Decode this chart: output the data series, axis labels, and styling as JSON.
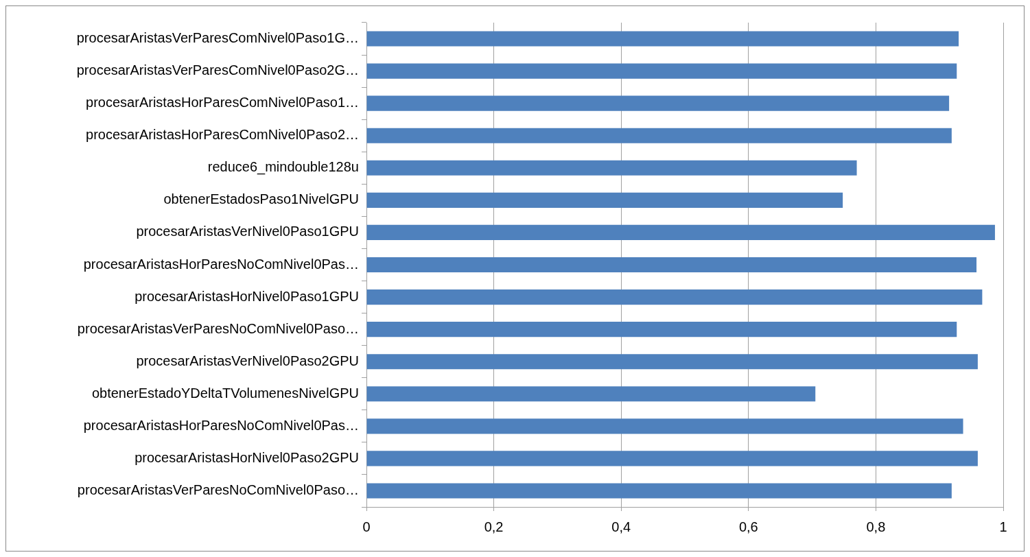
{
  "chart_data": {
    "type": "bar",
    "orientation": "horizontal",
    "categories": [
      "procesarAristasVerParesComNivel0Paso1G…",
      "procesarAristasVerParesComNivel0Paso2G…",
      "procesarAristasHorParesComNivel0Paso1…",
      "procesarAristasHorParesComNivel0Paso2…",
      "reduce6_mindouble128u",
      "obtenerEstadosPaso1NivelGPU",
      "procesarAristasVerNivel0Paso1GPU",
      "procesarAristasHorParesNoComNivel0Pas…",
      "procesarAristasHorNivel0Paso1GPU",
      "procesarAristasVerParesNoComNivel0Paso…",
      "procesarAristasVerNivel0Paso2GPU",
      "obtenerEstadoYDeltaTVolumenesNivelGPU",
      "procesarAristasHorParesNoComNivel0Pas…",
      "procesarAristasHorNivel0Paso2GPU",
      "procesarAristasVerParesNoComNivel0Paso…"
    ],
    "values": [
      0.93,
      0.927,
      0.915,
      0.919,
      0.77,
      0.748,
      0.987,
      0.958,
      0.967,
      0.927,
      0.96,
      0.705,
      0.937,
      0.96,
      0.919
    ],
    "color": "#4f81bd",
    "xlim": [
      0,
      1
    ],
    "xticks": [
      0,
      {
        "value": 0.2,
        "label": "0,2"
      },
      {
        "value": 0.4,
        "label": "0,4"
      },
      {
        "value": 0.6,
        "label": "0,6"
      },
      {
        "value": 0.8,
        "label": "0,8"
      },
      1
    ],
    "grid": "x",
    "legend": false
  }
}
